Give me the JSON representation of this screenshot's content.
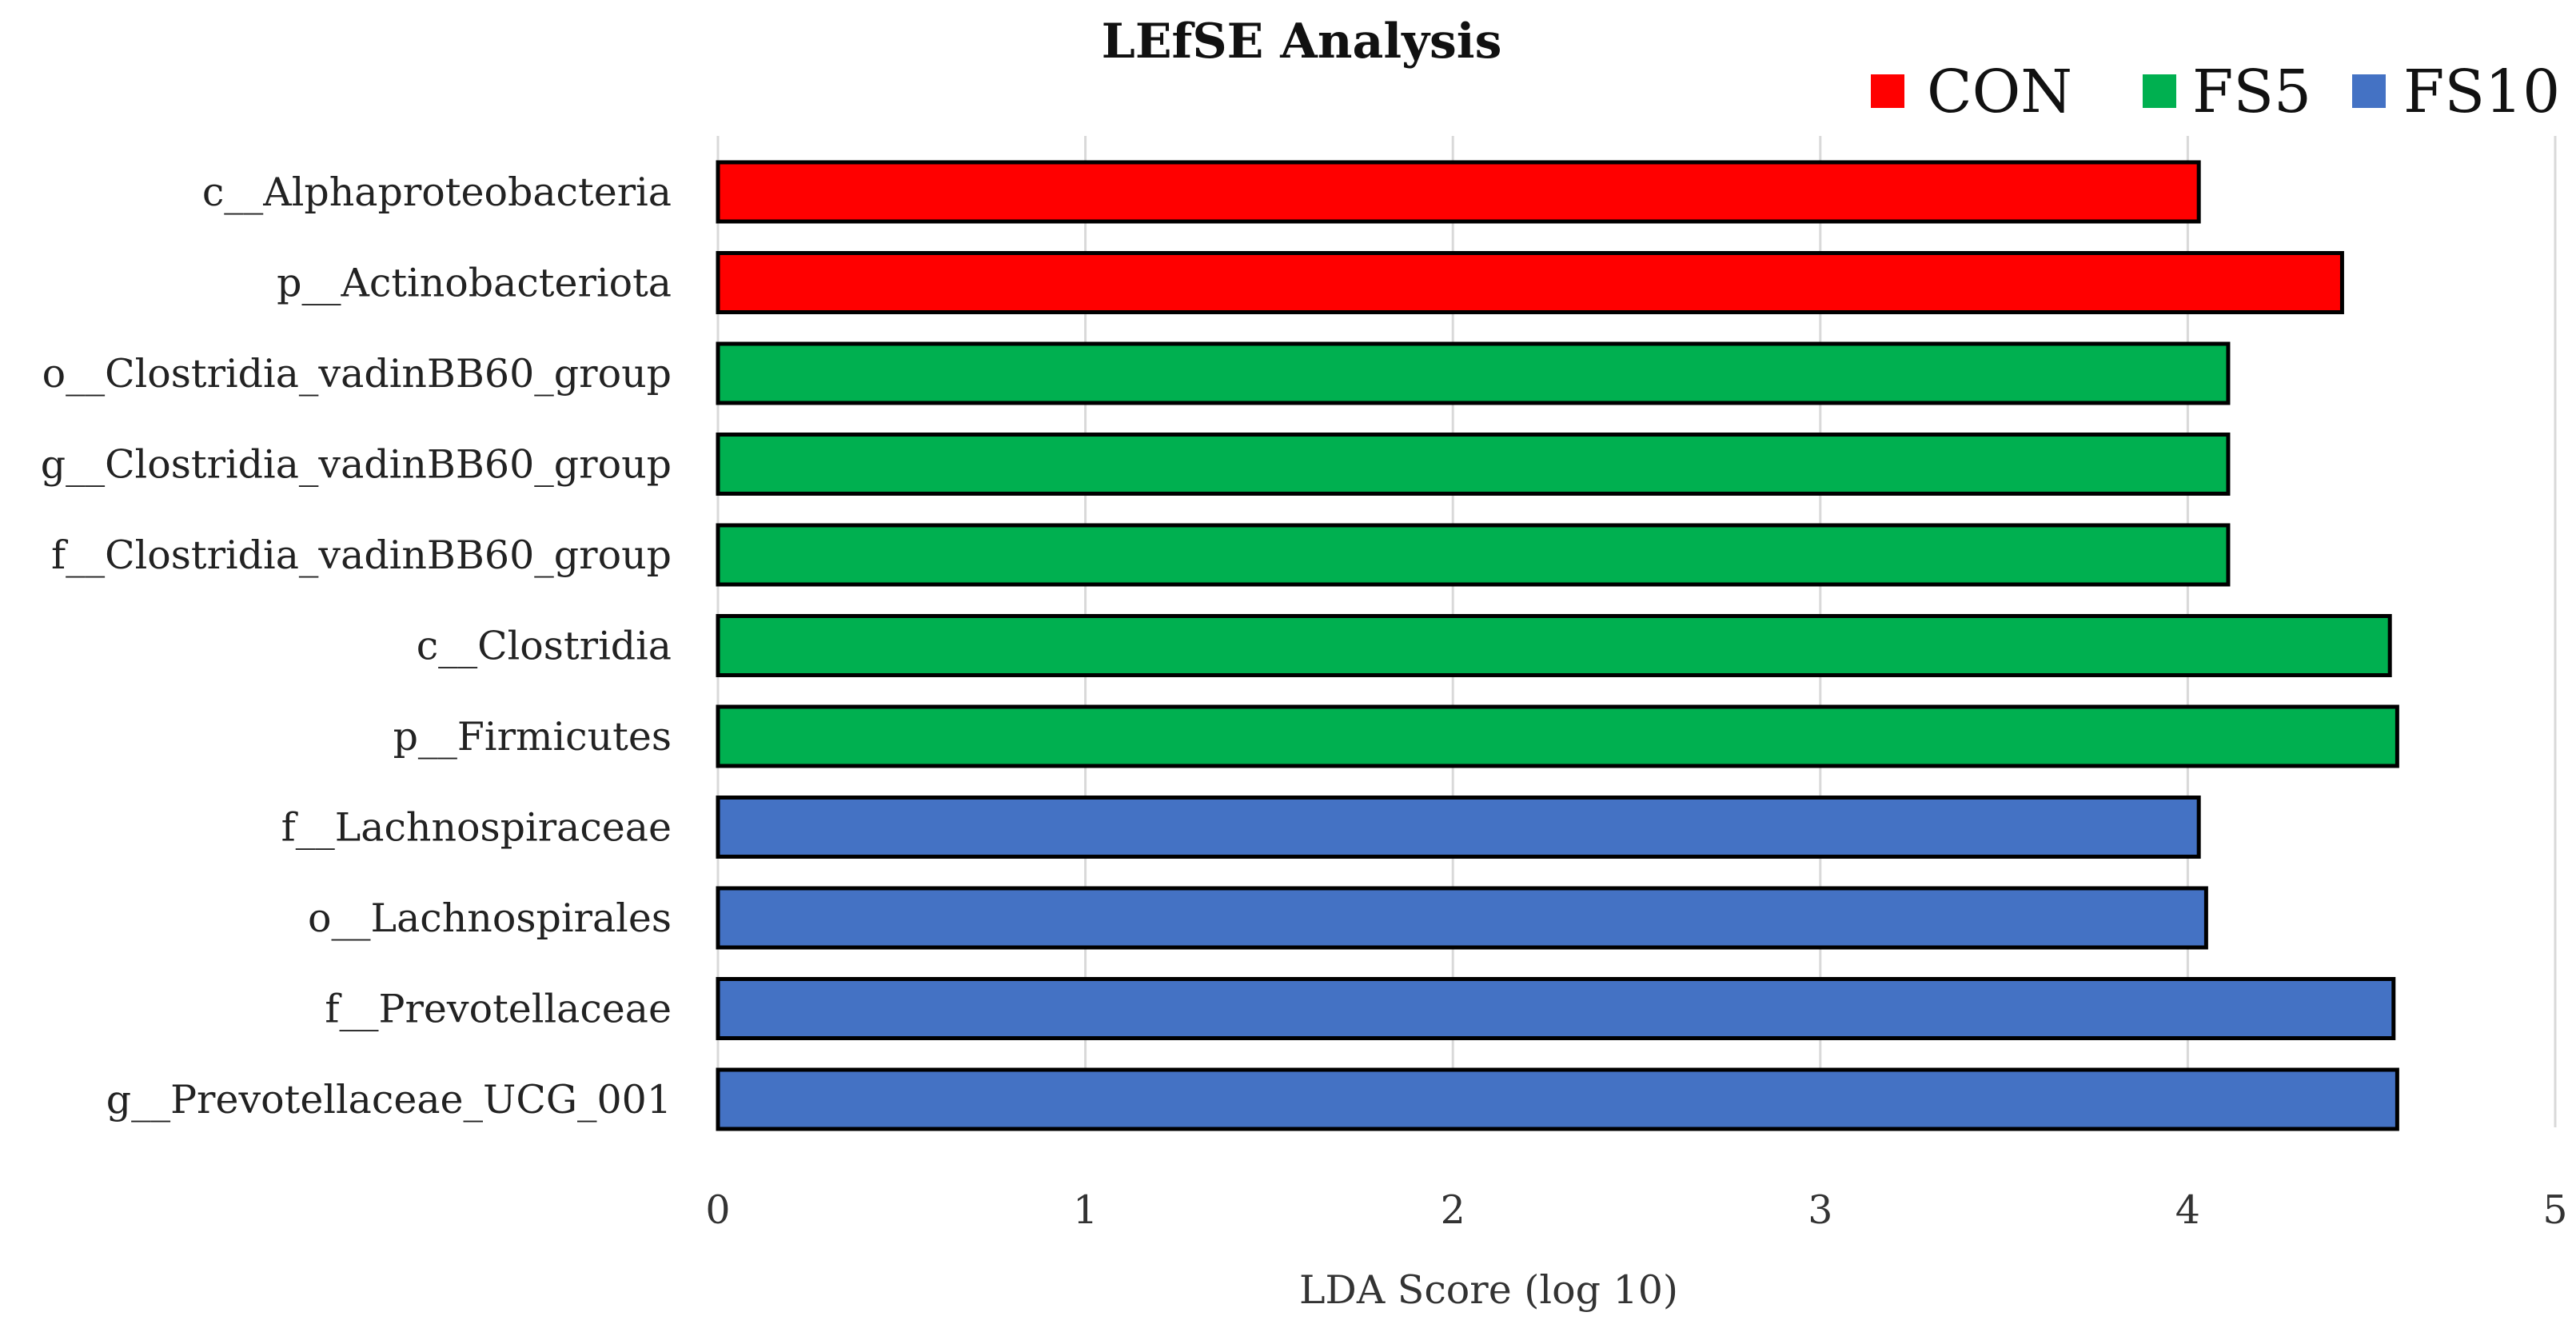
{
  "chart_data": {
    "type": "bar",
    "orientation": "horizontal",
    "title": "LEfSE Analysis",
    "xlabel": "LDA Score (log 10)",
    "ylabel": "",
    "xlim": [
      0,
      5
    ],
    "xticks": [
      "0",
      "1",
      "2",
      "3",
      "4",
      "5"
    ],
    "grid": true,
    "legend_position": "top-right",
    "groups": [
      {
        "name": "CON",
        "color": "#ff0000"
      },
      {
        "name": "FS5",
        "color": "#00b050"
      },
      {
        "name": "FS10",
        "color": "#4472c4"
      }
    ],
    "categories": [
      "c__Alphaproteobacteria",
      "p__Actinobacteriota",
      "o__Clostridia_vadinBB60_group",
      "g__Clostridia_vadinBB60_group",
      "f__Clostridia_vadinBB60_group",
      "c__Clostridia",
      "p__Firmicutes",
      "f__Lachnospiraceae",
      "o__Lachnospirales",
      "f__Prevotellaceae",
      "g__Prevotellaceae_UCG_001"
    ],
    "values": [
      4.03,
      4.42,
      4.11,
      4.11,
      4.11,
      4.55,
      4.57,
      4.03,
      4.05,
      4.56,
      4.57
    ],
    "bar_groups": [
      "CON",
      "CON",
      "FS5",
      "FS5",
      "FS5",
      "FS5",
      "FS5",
      "FS10",
      "FS10",
      "FS10",
      "FS10"
    ]
  }
}
